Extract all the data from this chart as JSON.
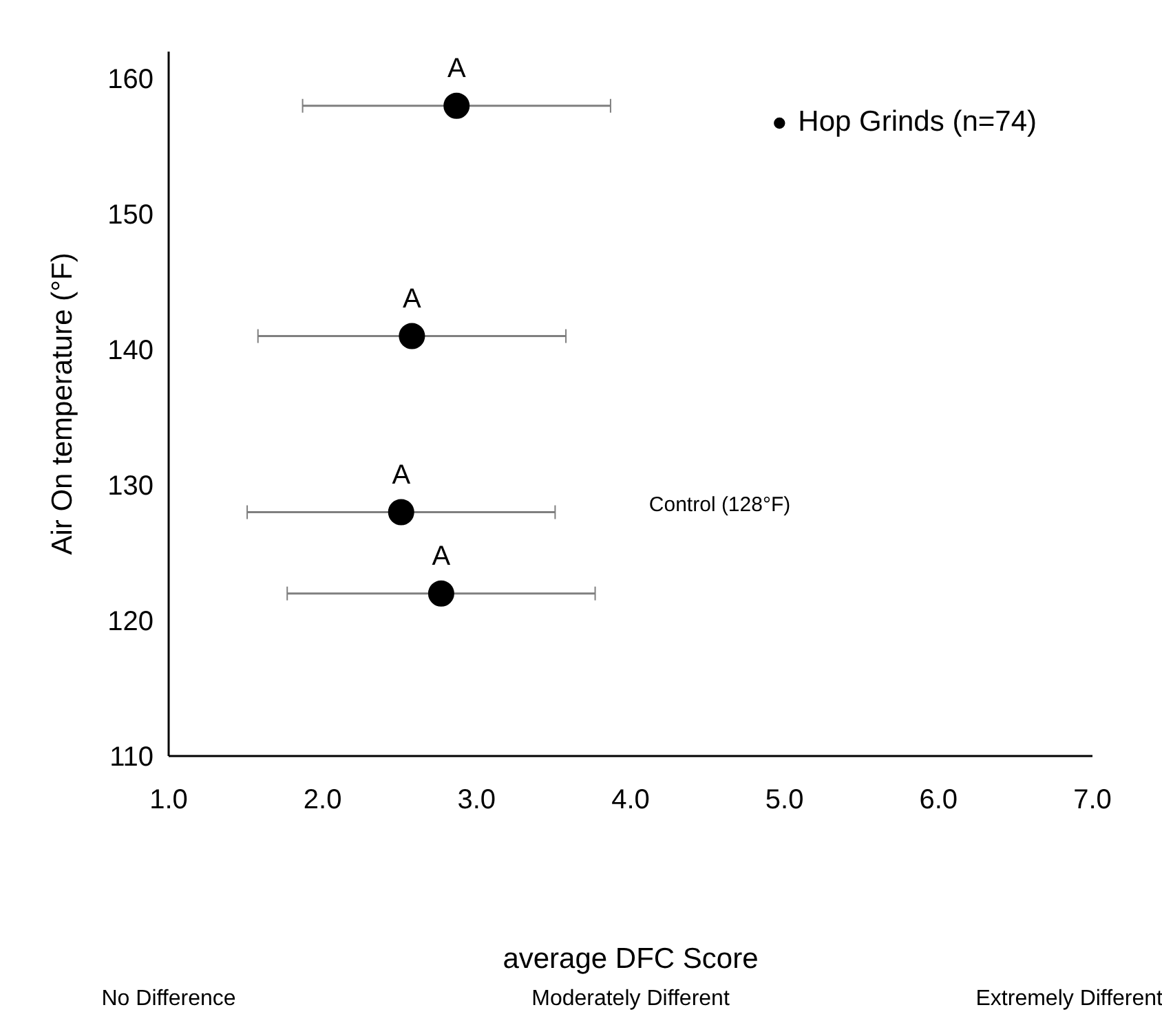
{
  "chart_data": {
    "type": "scatter",
    "xlabel": "average DFC Score",
    "ylabel": "Air On temperature (°F)",
    "series": [
      {
        "name": "Hop Grinds (n=74)",
        "color": "#000000",
        "x": [
          2.87,
          2.58,
          2.51,
          2.77
        ],
        "values": [
          158,
          141,
          128,
          122
        ],
        "xerrors": [
          1.0,
          1.0,
          1.0,
          1.0
        ]
      }
    ],
    "xlim": [
      1,
      7
    ],
    "xticks": [
      {
        "value": 1,
        "label": "1.0"
      },
      {
        "value": 2,
        "label": "2.0"
      },
      {
        "value": 3,
        "label": "3.0"
      },
      {
        "value": 4,
        "label": "4.0"
      },
      {
        "value": 5,
        "label": "5.0"
      },
      {
        "value": 6,
        "label": "6.0"
      },
      {
        "value": 7,
        "label": "7.0"
      }
    ],
    "ylim": [
      110,
      162
    ],
    "yticks": [
      110,
      120,
      130,
      140,
      150,
      160
    ],
    "annotations": [
      {
        "text": "A",
        "x": 2.87,
        "y": 158
      },
      {
        "text": "A",
        "x": 2.58,
        "y": 141
      },
      {
        "text": "A",
        "x": 2.51,
        "y": 128
      },
      {
        "text": "A",
        "x": 2.77,
        "y": 122
      },
      "Control (128°F)",
      "No Difference",
      "Moderately Different",
      "Extremely Different"
    ],
    "marker": "circle",
    "grid": false,
    "legend": "top right"
  }
}
